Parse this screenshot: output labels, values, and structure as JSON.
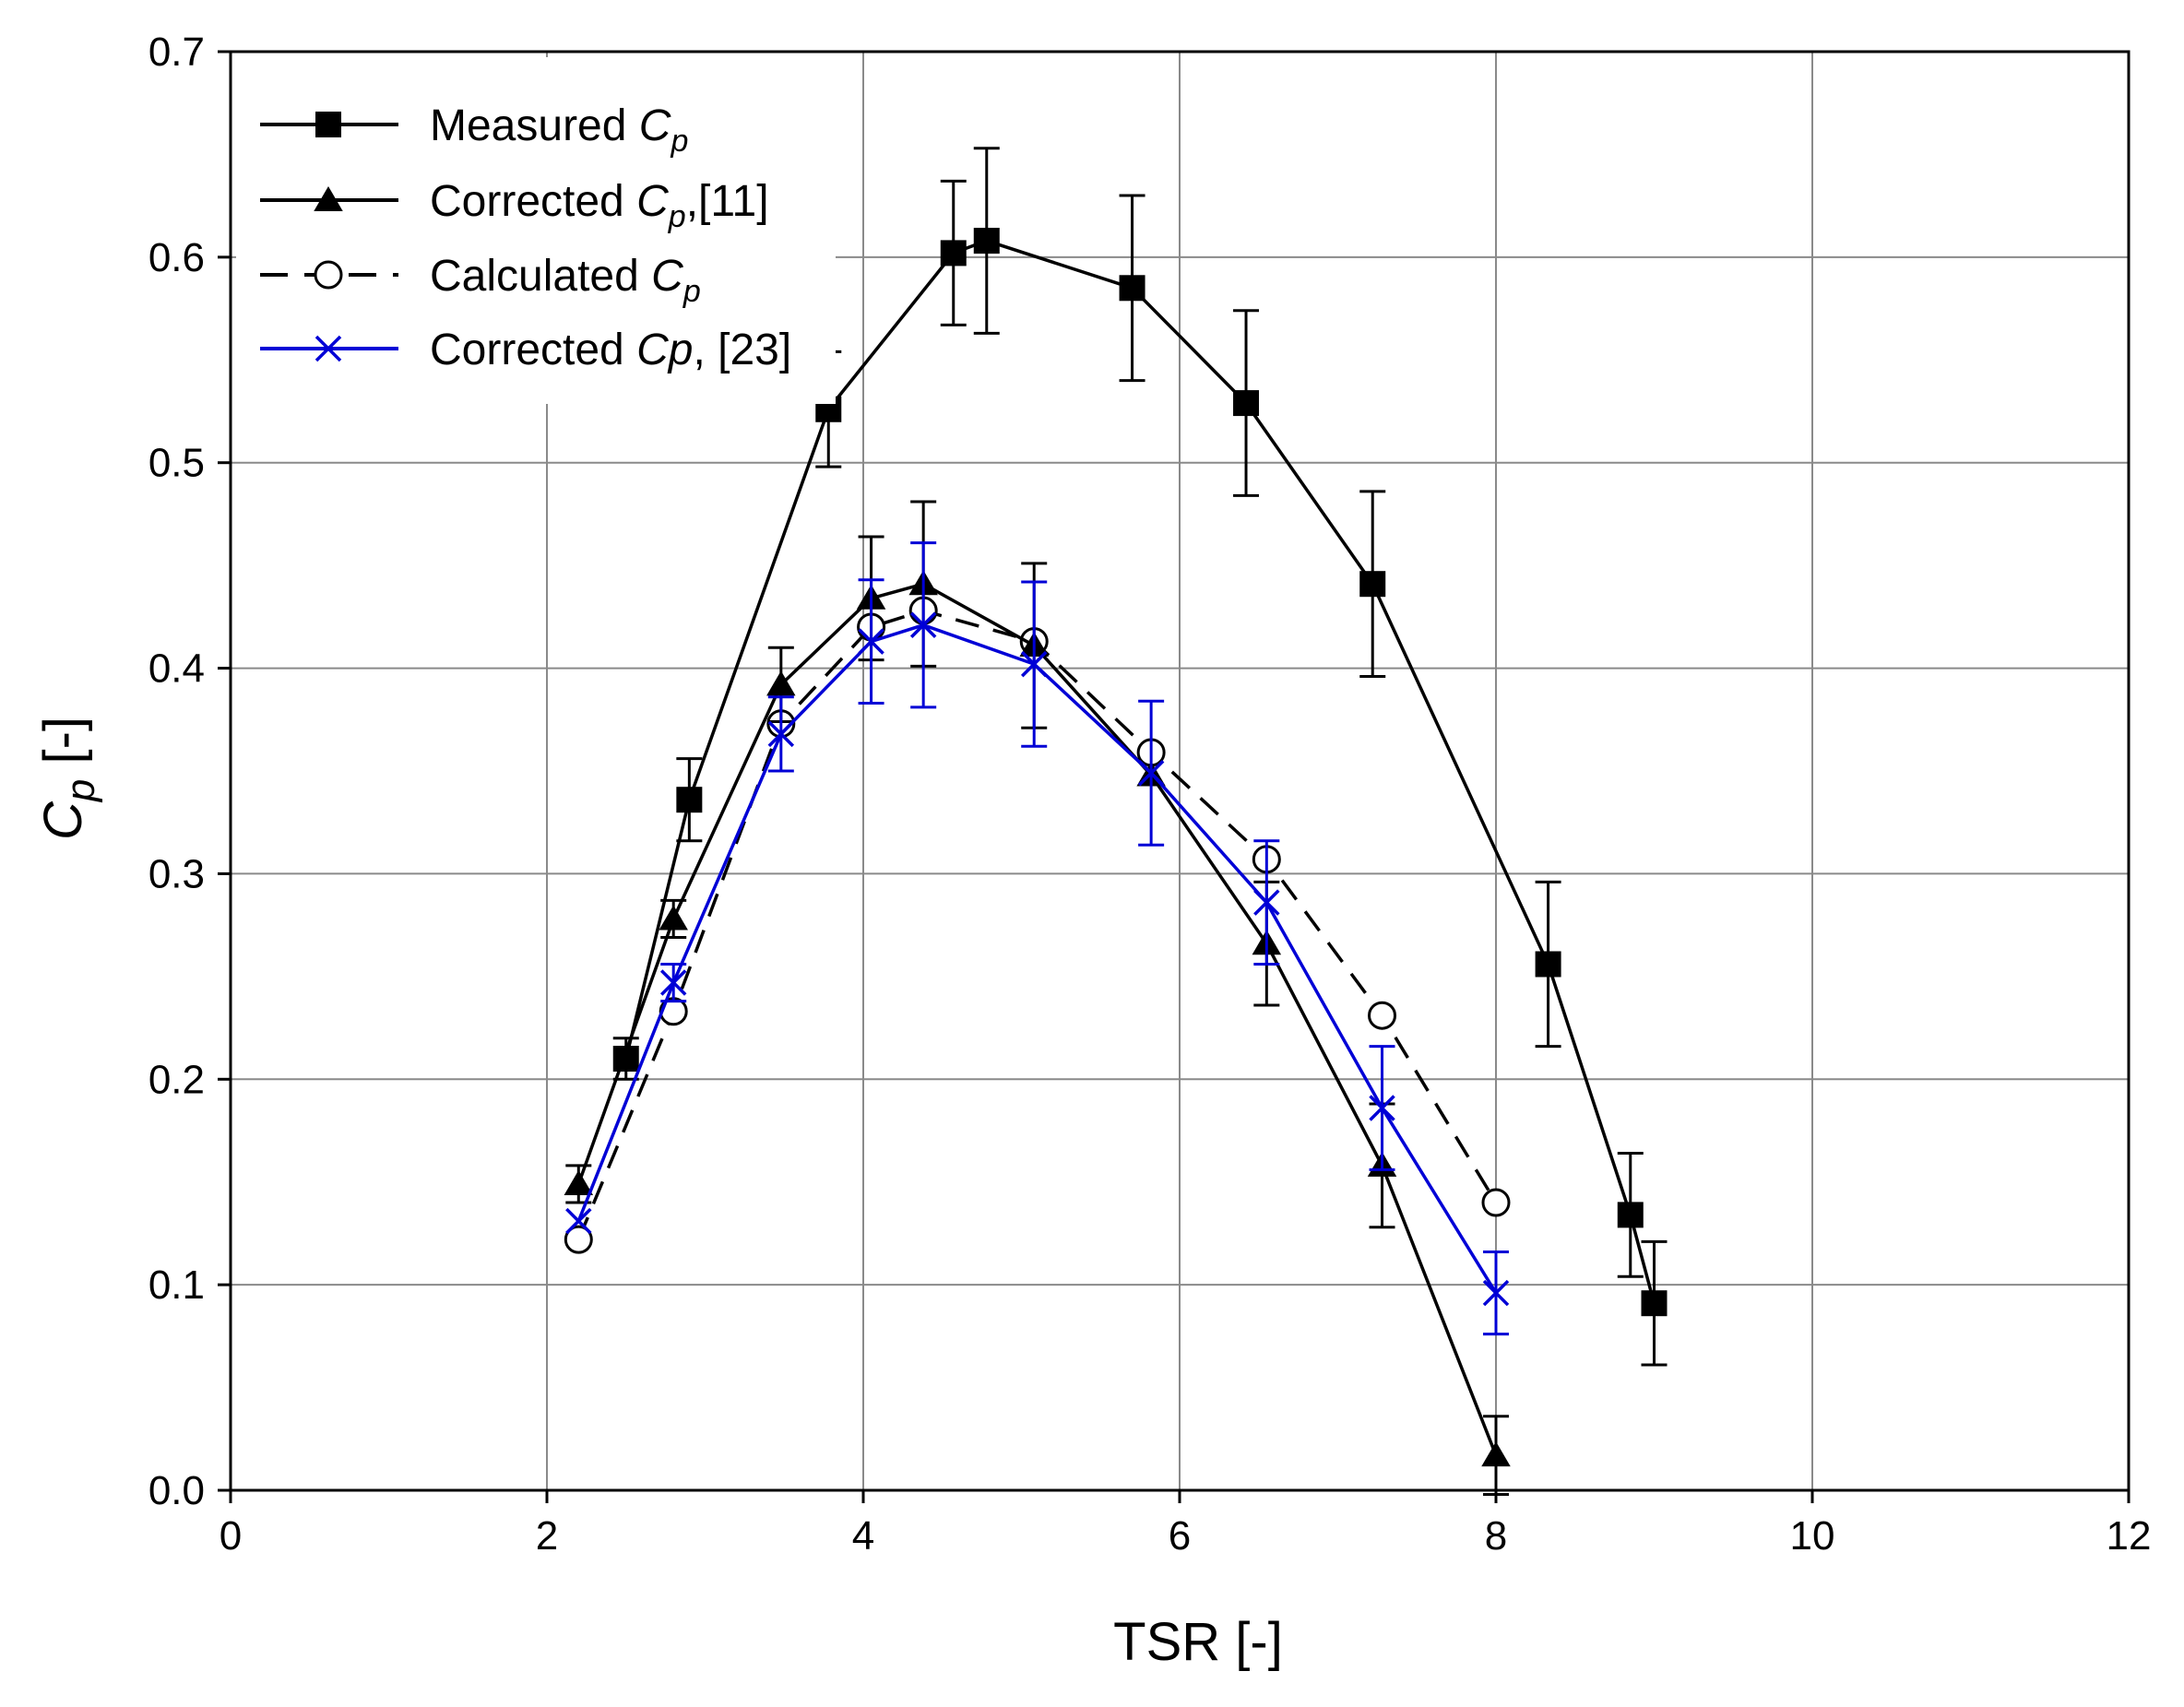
{
  "chart_data": {
    "type": "line",
    "xlabel": "TSR [-]",
    "ylabel": {
      "main": "C",
      "sub": "p",
      "unit": " [-]"
    },
    "xlim": [
      0,
      12
    ],
    "ylim": [
      0.0,
      0.7
    ],
    "x_ticks": [
      "0",
      "2",
      "4",
      "6",
      "8",
      "10",
      "12"
    ],
    "y_ticks": [
      "0.0",
      "0.1",
      "0.2",
      "0.3",
      "0.4",
      "0.5",
      "0.6",
      "0.7"
    ],
    "grid": true,
    "legend_position": "top-left",
    "series": [
      {
        "name": "Measured Cp",
        "label_parts": {
          "pre": "Measured ",
          "it": "C",
          "sub": "p",
          "post": ""
        },
        "color": "#000000",
        "dash": "solid",
        "marker": "square",
        "x": [
          2.5,
          2.9,
          3.78,
          4.57,
          4.78,
          5.7,
          6.42,
          7.22,
          8.33,
          8.85,
          9.0
        ],
        "y": [
          0.21,
          0.336,
          0.526,
          0.602,
          0.608,
          0.585,
          0.529,
          0.441,
          0.256,
          0.134,
          0.091
        ],
        "err": [
          0.01,
          0.02,
          0.028,
          0.035,
          0.045,
          0.045,
          0.045,
          0.045,
          0.04,
          0.03,
          0.03
        ]
      },
      {
        "name": "Corrected Cp,[11]",
        "label_parts": {
          "pre": "Corrected ",
          "it": "C",
          "sub": "p",
          "post": ",[11]"
        },
        "color": "#000000",
        "dash": "solid",
        "marker": "triangle",
        "x": [
          2.2,
          2.8,
          3.48,
          4.05,
          4.38,
          5.08,
          5.82,
          6.55,
          7.28,
          8.0
        ],
        "y": [
          0.149,
          0.278,
          0.392,
          0.434,
          0.441,
          0.411,
          0.348,
          0.266,
          0.158,
          0.017
        ],
        "err": [
          0.009,
          0.009,
          0.018,
          0.03,
          0.04,
          0.04,
          0.0,
          0.03,
          0.03,
          0.019
        ]
      },
      {
        "name": "Calculated Cp",
        "label_parts": {
          "pre": "Calculated ",
          "it": "C",
          "sub": "p",
          "post": ""
        },
        "color": "#000000",
        "dash": "dashed",
        "marker": "circle-open",
        "x": [
          2.2,
          2.8,
          3.48,
          4.05,
          4.38,
          5.08,
          5.82,
          6.55,
          7.28,
          8.0
        ],
        "y": [
          0.122,
          0.233,
          0.373,
          0.42,
          0.428,
          0.413,
          0.359,
          0.307,
          0.231,
          0.14
        ]
      },
      {
        "name": "Corrected Cp, [23]",
        "label_parts": {
          "pre": "Corrected ",
          "it": "Cp",
          "sub": "",
          "post": ", [23]"
        },
        "color": "#0000d6",
        "dash": "solid",
        "marker": "x",
        "x": [
          2.2,
          2.8,
          3.48,
          4.05,
          4.38,
          5.08,
          5.82,
          6.55,
          7.28,
          8.0
        ],
        "y": [
          0.131,
          0.247,
          0.368,
          0.413,
          0.421,
          0.402,
          0.349,
          0.286,
          0.186,
          0.096
        ],
        "err": [
          0.0,
          0.009,
          0.018,
          0.03,
          0.04,
          0.04,
          0.035,
          0.03,
          0.03,
          0.02
        ]
      }
    ]
  }
}
